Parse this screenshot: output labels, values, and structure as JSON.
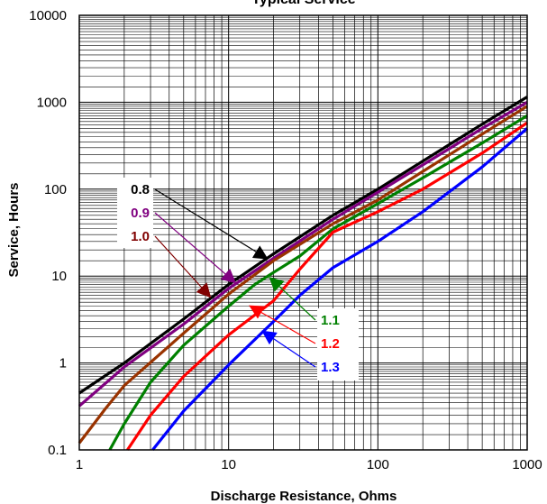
{
  "chart_data": {
    "type": "line",
    "title": "Typical Service",
    "xlabel": "Discharge Resistance, Ohms",
    "ylabel": "Service, Hours",
    "xscale": "log",
    "yscale": "log",
    "xlim": [
      1,
      1000
    ],
    "ylim": [
      0.1,
      10000
    ],
    "x_ticks": [
      {
        "value": 1,
        "label": "1"
      },
      {
        "value": 10,
        "label": "10"
      },
      {
        "value": 100,
        "label": "100"
      },
      {
        "value": 1000,
        "label": "1000"
      }
    ],
    "y_ticks": [
      {
        "value": 0.1,
        "label": "0.1"
      },
      {
        "value": 1,
        "label": "1"
      },
      {
        "value": 10,
        "label": "10"
      },
      {
        "value": 100,
        "label": "100"
      },
      {
        "value": 1000,
        "label": "1000"
      },
      {
        "value": 10000,
        "label": "10000"
      }
    ],
    "grid": true,
    "legend": "none",
    "series": [
      {
        "name": "0.8",
        "color": "#000000",
        "points": [
          [
            1,
            0.45
          ],
          [
            2,
            1.0
          ],
          [
            5,
            3.2
          ],
          [
            10,
            8
          ],
          [
            20,
            18
          ],
          [
            50,
            50
          ],
          [
            100,
            100
          ],
          [
            200,
            210
          ],
          [
            500,
            560
          ],
          [
            1000,
            1150
          ]
        ]
      },
      {
        "name": "0.9",
        "color": "#800080",
        "points": [
          [
            1,
            0.32
          ],
          [
            2,
            0.9
          ],
          [
            5,
            2.8
          ],
          [
            10,
            7.2
          ],
          [
            20,
            16
          ],
          [
            50,
            45
          ],
          [
            100,
            92
          ],
          [
            200,
            190
          ],
          [
            500,
            500
          ],
          [
            1000,
            1000
          ]
        ]
      },
      {
        "name": "1.0",
        "color": "#993300",
        "points": [
          [
            1,
            0.12
          ],
          [
            1.5,
            0.3
          ],
          [
            2,
            0.55
          ],
          [
            5,
            2.2
          ],
          [
            10,
            6.2
          ],
          [
            20,
            15
          ],
          [
            50,
            40
          ],
          [
            100,
            75
          ],
          [
            200,
            160
          ],
          [
            500,
            430
          ],
          [
            1000,
            900
          ]
        ]
      },
      {
        "name": "1.1",
        "color": "#008000",
        "points": [
          [
            1.6,
            0.1
          ],
          [
            2,
            0.2
          ],
          [
            3,
            0.6
          ],
          [
            5,
            1.6
          ],
          [
            10,
            4.5
          ],
          [
            15,
            8
          ],
          [
            20,
            11
          ],
          [
            30,
            17
          ],
          [
            50,
            35
          ],
          [
            100,
            68
          ],
          [
            200,
            135
          ],
          [
            500,
            340
          ],
          [
            1000,
            700
          ]
        ]
      },
      {
        "name": "1.2",
        "color": "#ff0000",
        "points": [
          [
            2.1,
            0.1
          ],
          [
            3,
            0.25
          ],
          [
            5,
            0.7
          ],
          [
            10,
            2.1
          ],
          [
            20,
            5.2
          ],
          [
            30,
            12
          ],
          [
            50,
            32
          ],
          [
            100,
            55
          ],
          [
            200,
            100
          ],
          [
            500,
            260
          ],
          [
            1000,
            580
          ]
        ]
      },
      {
        "name": "1.3",
        "color": "#0000ff",
        "points": [
          [
            3.1,
            0.1
          ],
          [
            5,
            0.28
          ],
          [
            10,
            0.95
          ],
          [
            20,
            3.0
          ],
          [
            30,
            6
          ],
          [
            50,
            12.5
          ],
          [
            100,
            25
          ],
          [
            200,
            55
          ],
          [
            500,
            180
          ],
          [
            1000,
            500
          ]
        ]
      }
    ],
    "annotations": [
      {
        "text": "0.8",
        "color": "#000000",
        "side": "left",
        "target": [
          18,
          16
        ]
      },
      {
        "text": "0.9",
        "color": "#800080",
        "side": "left",
        "target": [
          11,
          8.5
        ]
      },
      {
        "text": "1.0",
        "color": "#800000",
        "side": "left",
        "target": [
          7.5,
          5.8
        ]
      },
      {
        "text": "1.1",
        "color": "#008000",
        "side": "right",
        "target": [
          19,
          9.5
        ]
      },
      {
        "text": "1.2",
        "color": "#ff0000",
        "side": "right",
        "target": [
          14,
          4.5
        ]
      },
      {
        "text": "1.3",
        "color": "#0000ff",
        "side": "right",
        "target": [
          17,
          2.3
        ]
      }
    ]
  }
}
